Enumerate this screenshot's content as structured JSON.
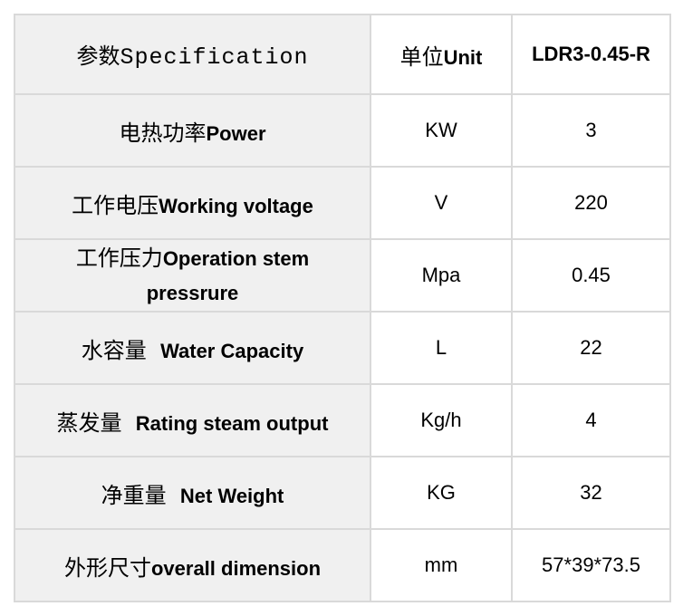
{
  "header": {
    "spec_zh": "参数",
    "spec_en": "Specification",
    "unit_zh": "单位",
    "unit_en": "Unit",
    "model": "LDR3-0.45-R"
  },
  "rows": [
    {
      "zh": "电热功率",
      "en": "Power",
      "unit": "KW",
      "value": "3"
    },
    {
      "zh": "工作电压",
      "en": "Working voltage",
      "unit": "V",
      "value": "220"
    },
    {
      "zh": "工作压力",
      "en": "Operation stem pressrure",
      "unit": "Mpa",
      "value": "0.45"
    },
    {
      "zh": "水容量  ",
      "en": "Water Capacity",
      "unit": "L",
      "value": "22"
    },
    {
      "zh": "蒸发量  ",
      "en": "Rating steam output",
      "unit": "Kg/h",
      "value": "4"
    },
    {
      "zh": "净重量  ",
      "en": "Net Weight",
      "unit": "KG",
      "value": "32"
    },
    {
      "zh": "外形尺寸",
      "en": "overall dimension",
      "unit": "mm",
      "value": "57*39*73.5"
    }
  ]
}
